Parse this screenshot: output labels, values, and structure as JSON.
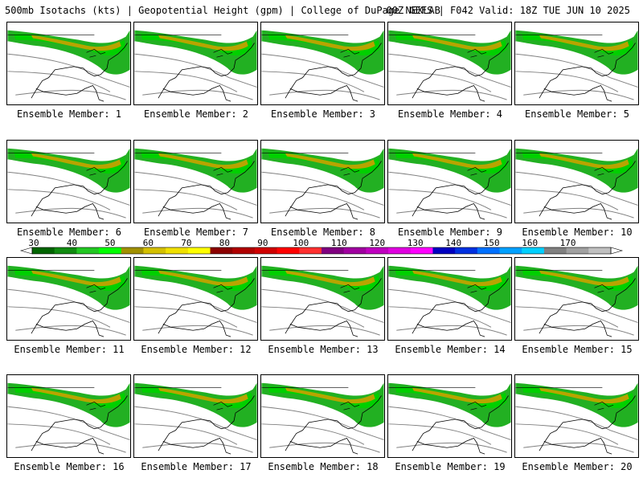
{
  "header": {
    "title_left": "500mb Isotachs (kts) | Geopotential Height (gpm) | College of DuPage NEXLAB",
    "title_right": "00Z GEFS | F042 Valid: 18Z TUE JUN 10 2025"
  },
  "panels": [
    {
      "label": "Ensemble Member: 1"
    },
    {
      "label": "Ensemble Member: 2"
    },
    {
      "label": "Ensemble Member: 3"
    },
    {
      "label": "Ensemble Member: 4"
    },
    {
      "label": "Ensemble Member: 5"
    },
    {
      "label": "Ensemble Member: 6"
    },
    {
      "label": "Ensemble Member: 7"
    },
    {
      "label": "Ensemble Member: 8"
    },
    {
      "label": "Ensemble Member: 9"
    },
    {
      "label": "Ensemble Member: 10"
    },
    {
      "label": "Ensemble Member: 11"
    },
    {
      "label": "Ensemble Member: 12"
    },
    {
      "label": "Ensemble Member: 13"
    },
    {
      "label": "Ensemble Member: 14"
    },
    {
      "label": "Ensemble Member: 15"
    },
    {
      "label": "Ensemble Member: 16"
    },
    {
      "label": "Ensemble Member: 17"
    },
    {
      "label": "Ensemble Member: 18"
    },
    {
      "label": "Ensemble Member: 19"
    },
    {
      "label": "Ensemble Member: 20"
    }
  ],
  "colorbar": {
    "ticks": [
      "30",
      "40",
      "50",
      "60",
      "70",
      "80",
      "90",
      "100",
      "110",
      "120",
      "130",
      "140",
      "150",
      "160",
      "170"
    ],
    "colors": [
      "#006400",
      "#108a10",
      "#22c722",
      "#00ff00",
      "#a09000",
      "#d4c000",
      "#f0e000",
      "#ffff00",
      "#8b0000",
      "#b00000",
      "#d00000",
      "#ff0000",
      "#ff3030",
      "#800080",
      "#a000a0",
      "#c000c0",
      "#e000e0",
      "#ff00ff",
      "#0000c0",
      "#0030e0",
      "#0070ff",
      "#00a0ff",
      "#00d0ff",
      "#808080",
      "#a0a0a0",
      "#c0c0c0"
    ]
  }
}
